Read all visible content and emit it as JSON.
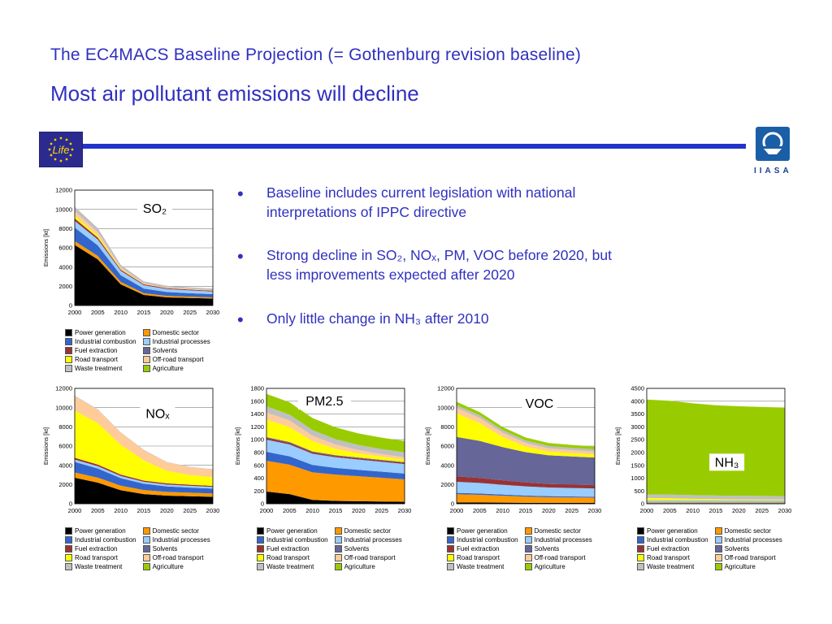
{
  "slide": {
    "title": "The EC4MACS Baseline Projection (= Gothenburg revision baseline)",
    "subtitle": "Most air pollutant emissions will decline"
  },
  "logos": {
    "life_label": "Life",
    "iiasa_label": "IIASA"
  },
  "bullets": [
    "Baseline includes current legislation with national interpretations of IPPC directive",
    "Strong decline in SO₂, NOₓ, PM, VOC before 2020, but less improvements expected after 2020",
    "Only little change in NH₃ after 2010"
  ],
  "legend": {
    "entries": [
      {
        "label": "Power generation",
        "color": "#000000"
      },
      {
        "label": "Domestic sector",
        "color": "#FF9900"
      },
      {
        "label": "Industrial combustion",
        "color": "#3366CC"
      },
      {
        "label": "Industrial processes",
        "color": "#99CCFF"
      },
      {
        "label": "Fuel extraction",
        "color": "#993333"
      },
      {
        "label": "Solvents",
        "color": "#666699"
      },
      {
        "label": "Road transport",
        "color": "#FFFF00"
      },
      {
        "label": "Off-road transport",
        "color": "#FFCC99"
      },
      {
        "label": "Waste treatment",
        "color": "#C0C0C0"
      },
      {
        "label": "Agriculture",
        "color": "#99CC00"
      }
    ]
  },
  "chart_data": [
    {
      "type": "area",
      "title": "SO₂",
      "ylabel": "Emissions [kt]",
      "x": [
        2000,
        2005,
        2010,
        2015,
        2020,
        2025,
        2030
      ],
      "ylim": [
        0,
        12000
      ],
      "ystep": 2000,
      "label_pos": [
        0.58,
        0.1
      ],
      "series": [
        {
          "name": "Power generation",
          "values": [
            6300,
            4800,
            2200,
            1100,
            850,
            780,
            720
          ]
        },
        {
          "name": "Domestic sector",
          "values": [
            400,
            350,
            250,
            180,
            150,
            140,
            130
          ]
        },
        {
          "name": "Industrial combustion",
          "values": [
            1400,
            1100,
            700,
            480,
            400,
            360,
            330
          ]
        },
        {
          "name": "Industrial processes",
          "values": [
            700,
            620,
            450,
            350,
            310,
            290,
            280
          ]
        },
        {
          "name": "Fuel extraction",
          "values": [
            250,
            200,
            130,
            100,
            90,
            85,
            80
          ]
        },
        {
          "name": "Solvents",
          "values": [
            0,
            0,
            0,
            0,
            0,
            0,
            0
          ]
        },
        {
          "name": "Road transport",
          "values": [
            280,
            180,
            40,
            15,
            10,
            10,
            10
          ]
        },
        {
          "name": "Off-road transport",
          "values": [
            450,
            380,
            180,
            90,
            60,
            55,
            50
          ]
        },
        {
          "name": "Waste treatment",
          "values": [
            500,
            420,
            280,
            200,
            180,
            170,
            160
          ]
        },
        {
          "name": "Agriculture",
          "values": [
            0,
            0,
            0,
            0,
            0,
            0,
            0
          ]
        }
      ]
    },
    {
      "type": "area",
      "title": "NOₓ",
      "ylabel": "Emissions [kt]",
      "x": [
        2000,
        2005,
        2010,
        2015,
        2020,
        2025,
        2030
      ],
      "ylim": [
        0,
        12000
      ],
      "ystep": 2000,
      "label_pos": [
        0.6,
        0.16
      ],
      "series": [
        {
          "name": "Power generation",
          "values": [
            2700,
            2200,
            1400,
            1000,
            850,
            780,
            720
          ]
        },
        {
          "name": "Domestic sector",
          "values": [
            550,
            520,
            480,
            430,
            390,
            370,
            350
          ]
        },
        {
          "name": "Industrial combustion",
          "values": [
            1100,
            950,
            780,
            650,
            570,
            530,
            500
          ]
        },
        {
          "name": "Industrial processes",
          "values": [
            250,
            240,
            220,
            200,
            190,
            185,
            180
          ]
        },
        {
          "name": "Fuel extraction",
          "values": [
            180,
            170,
            150,
            130,
            120,
            115,
            110
          ]
        },
        {
          "name": "Solvents",
          "values": [
            0,
            0,
            0,
            0,
            0,
            0,
            0
          ]
        },
        {
          "name": "Road transport",
          "values": [
            4900,
            4300,
            3100,
            2100,
            1300,
            1000,
            900
          ]
        },
        {
          "name": "Off-road transport",
          "values": [
            1500,
            1400,
            1250,
            1050,
            880,
            820,
            800
          ]
        },
        {
          "name": "Waste treatment",
          "values": [
            60,
            55,
            50,
            45,
            40,
            40,
            40
          ]
        },
        {
          "name": "Agriculture",
          "values": [
            0,
            0,
            0,
            0,
            0,
            0,
            0
          ]
        }
      ]
    },
    {
      "type": "area",
      "title": "PM2.5",
      "ylabel": "Emissions [kt]",
      "x": [
        2000,
        2005,
        2010,
        2015,
        2020,
        2025,
        2030
      ],
      "ylim": [
        0,
        1800
      ],
      "ystep": 200,
      "label_pos": [
        0.42,
        0.05
      ],
      "series": [
        {
          "name": "Power generation",
          "values": [
            190,
            150,
            60,
            45,
            40,
            35,
            30
          ]
        },
        {
          "name": "Domestic sector",
          "values": [
            480,
            460,
            430,
            410,
            390,
            370,
            350
          ]
        },
        {
          "name": "Industrial combustion",
          "values": [
            140,
            130,
            115,
            105,
            100,
            95,
            90
          ]
        },
        {
          "name": "Industrial processes",
          "values": [
            190,
            185,
            175,
            165,
            160,
            155,
            150
          ]
        },
        {
          "name": "Fuel extraction",
          "values": [
            25,
            24,
            22,
            20,
            19,
            18,
            18
          ]
        },
        {
          "name": "Solvents",
          "values": [
            15,
            15,
            14,
            13,
            12,
            12,
            12
          ]
        },
        {
          "name": "Road transport",
          "values": [
            270,
            230,
            160,
            100,
            65,
            50,
            40
          ]
        },
        {
          "name": "Off-road transport",
          "values": [
            115,
            105,
            85,
            65,
            50,
            40,
            35
          ]
        },
        {
          "name": "Waste treatment",
          "values": [
            95,
            92,
            88,
            84,
            80,
            78,
            76
          ]
        },
        {
          "name": "Agriculture",
          "values": [
            195,
            192,
            188,
            184,
            180,
            178,
            176
          ]
        }
      ]
    },
    {
      "type": "area",
      "title": "VOC",
      "ylabel": "Emissions [kt]",
      "x": [
        2000,
        2005,
        2010,
        2015,
        2020,
        2025,
        2030
      ],
      "ylim": [
        0,
        12000
      ],
      "ystep": 2000,
      "label_pos": [
        0.6,
        0.07
      ],
      "series": [
        {
          "name": "Power generation",
          "values": [
            140,
            130,
            115,
            100,
            90,
            85,
            80
          ]
        },
        {
          "name": "Domestic sector",
          "values": [
            850,
            800,
            720,
            640,
            590,
            570,
            550
          ]
        },
        {
          "name": "Industrial combustion",
          "values": [
            140,
            135,
            125,
            115,
            108,
            104,
            100
          ]
        },
        {
          "name": "Industrial processes",
          "values": [
            1150,
            1100,
            1020,
            950,
            900,
            880,
            860
          ]
        },
        {
          "name": "Fuel extraction",
          "values": [
            570,
            520,
            460,
            410,
            375,
            360,
            345
          ]
        },
        {
          "name": "Solvents",
          "values": [
            4100,
            3850,
            3450,
            3150,
            2980,
            2920,
            2870
          ]
        },
        {
          "name": "Road transport",
          "values": [
            2450,
            1850,
            1050,
            580,
            390,
            340,
            310
          ]
        },
        {
          "name": "Off-road transport",
          "values": [
            580,
            530,
            440,
            370,
            325,
            305,
            295
          ]
        },
        {
          "name": "Waste treatment",
          "values": [
            290,
            283,
            272,
            262,
            254,
            250,
            246
          ]
        },
        {
          "name": "Agriculture",
          "values": [
            340,
            332,
            322,
            312,
            305,
            300,
            296
          ]
        }
      ]
    },
    {
      "type": "area",
      "title": "NH₃",
      "ylabel": "Emissions [kt]",
      "x": [
        2000,
        2005,
        2010,
        2015,
        2020,
        2025,
        2030
      ],
      "ylim": [
        0,
        4500
      ],
      "ystep": 500,
      "label_pos": [
        0.58,
        0.58
      ],
      "series": [
        {
          "name": "Power generation",
          "values": [
            15,
            15,
            15,
            15,
            15,
            15,
            15
          ]
        },
        {
          "name": "Domestic sector",
          "values": [
            25,
            25,
            25,
            25,
            25,
            25,
            25
          ]
        },
        {
          "name": "Industrial combustion",
          "values": [
            15,
            15,
            15,
            15,
            15,
            15,
            15
          ]
        },
        {
          "name": "Industrial processes",
          "values": [
            55,
            55,
            55,
            55,
            55,
            55,
            55
          ]
        },
        {
          "name": "Fuel extraction",
          "values": [
            8,
            8,
            8,
            8,
            8,
            8,
            8
          ]
        },
        {
          "name": "Solvents",
          "values": [
            5,
            5,
            5,
            5,
            5,
            5,
            5
          ]
        },
        {
          "name": "Road transport",
          "values": [
            95,
            85,
            65,
            50,
            40,
            35,
            32
          ]
        },
        {
          "name": "Off-road transport",
          "values": [
            8,
            8,
            8,
            8,
            8,
            8,
            8
          ]
        },
        {
          "name": "Waste treatment",
          "values": [
            140,
            140,
            140,
            140,
            140,
            140,
            140
          ]
        },
        {
          "name": "Agriculture",
          "values": [
            3700,
            3660,
            3580,
            3520,
            3490,
            3470,
            3450
          ]
        }
      ]
    }
  ]
}
